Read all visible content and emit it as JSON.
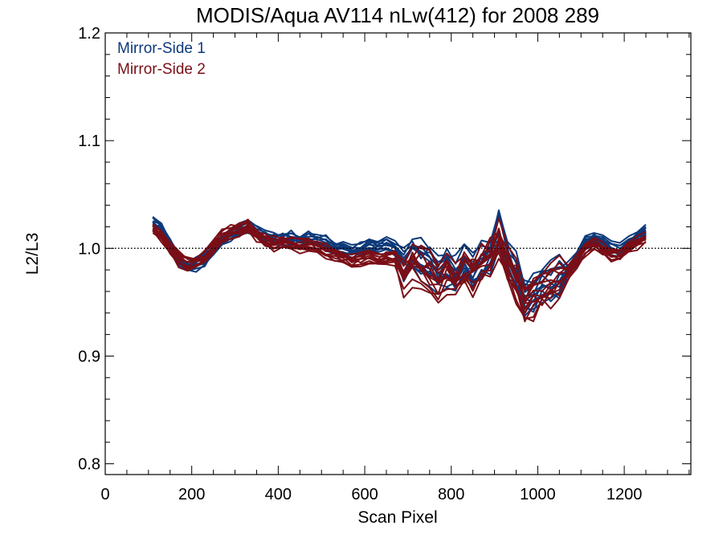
{
  "chart_data": {
    "type": "line",
    "title": "MODIS/Aqua AV114 nLw(412) for 2008 289",
    "xlabel": "Scan Pixel",
    "ylabel": "L2/L3",
    "xlim": [
      0,
      1354
    ],
    "ylim": [
      0.79,
      1.2
    ],
    "xticks": [
      0,
      200,
      400,
      600,
      800,
      1000,
      1200
    ],
    "xtick_labels": [
      "0",
      "200",
      "400",
      "600",
      "800",
      "1000",
      "1200"
    ],
    "yticks": [
      0.8,
      0.9,
      1.0,
      1.1,
      1.2
    ],
    "ytick_labels": [
      "0.8",
      "0.9",
      "1.0",
      "1.1",
      "1.2"
    ],
    "reference_line": 1.0,
    "legend_position": "top-left",
    "grid": false,
    "x": [
      110,
      130,
      150,
      170,
      190,
      210,
      230,
      250,
      270,
      290,
      310,
      330,
      350,
      370,
      390,
      410,
      430,
      450,
      470,
      490,
      510,
      530,
      550,
      570,
      590,
      610,
      630,
      650,
      670,
      690,
      710,
      730,
      750,
      770,
      790,
      810,
      830,
      850,
      870,
      890,
      910,
      930,
      950,
      970,
      990,
      1010,
      1030,
      1050,
      1070,
      1090,
      1110,
      1130,
      1150,
      1170,
      1190,
      1210,
      1230,
      1250
    ],
    "series": [
      {
        "name": "Mirror-Side 1",
        "color": "#0d3a7a",
        "mean": [
          1.025,
          1.018,
          1.005,
          0.99,
          0.983,
          0.985,
          0.99,
          1.0,
          1.008,
          1.012,
          1.016,
          1.02,
          1.014,
          1.01,
          1.008,
          1.009,
          1.01,
          1.006,
          1.009,
          1.007,
          1.005,
          1.0,
          0.999,
          0.997,
          0.999,
          1.002,
          1.001,
          1.003,
          1.0,
          0.985,
          0.993,
          0.99,
          0.985,
          0.975,
          0.98,
          0.975,
          0.985,
          0.98,
          0.99,
          0.995,
          1.015,
          0.99,
          0.975,
          0.955,
          0.96,
          0.965,
          0.97,
          0.975,
          0.98,
          0.99,
          1.005,
          1.01,
          1.005,
          1.0,
          0.998,
          1.005,
          1.01,
          1.015
        ]
      },
      {
        "name": "Mirror-Side 2",
        "color": "#7a0e16",
        "mean": [
          1.018,
          1.012,
          1.0,
          0.99,
          0.987,
          0.988,
          0.992,
          1.003,
          1.01,
          1.015,
          1.018,
          1.02,
          1.012,
          1.008,
          1.004,
          1.006,
          1.005,
          1.002,
          1.003,
          1.0,
          0.998,
          0.995,
          0.992,
          0.989,
          0.99,
          0.992,
          0.99,
          0.992,
          0.99,
          0.975,
          0.984,
          0.982,
          0.978,
          0.968,
          0.975,
          0.97,
          0.978,
          0.975,
          0.985,
          0.99,
          1.01,
          0.985,
          0.97,
          0.95,
          0.955,
          0.96,
          0.966,
          0.972,
          0.978,
          0.988,
          1.0,
          1.005,
          1.0,
          0.995,
          0.995,
          1.0,
          1.005,
          1.01
        ]
      }
    ]
  }
}
